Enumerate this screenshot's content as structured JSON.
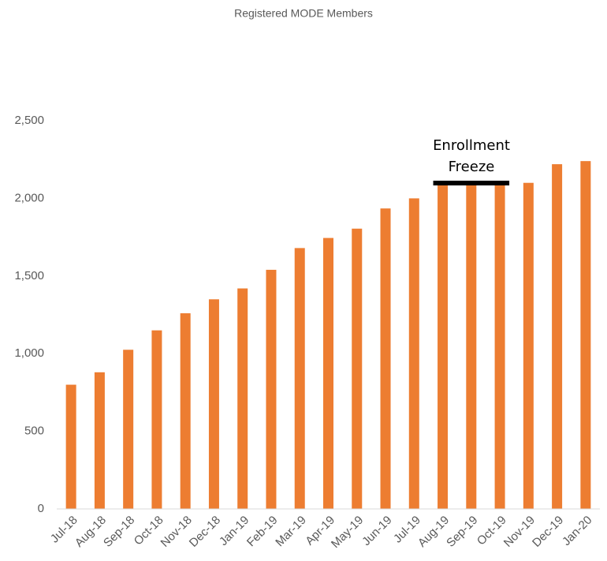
{
  "chart_data": {
    "type": "bar",
    "title": "Registered MODE Members",
    "categories": [
      "Jul-18",
      "Aug-18",
      "Sep-18",
      "Oct-18",
      "Nov-18",
      "Dec-18",
      "Jan-19",
      "Feb-19",
      "Mar-19",
      "Apr-19",
      "May-19",
      "Jun-19",
      "Jul-19",
      "Aug-19",
      "Sep-19",
      "Oct-19",
      "Nov-19",
      "Dec-19",
      "Jan-20"
    ],
    "values": [
      800,
      880,
      1025,
      1150,
      1260,
      1350,
      1420,
      1540,
      1680,
      1745,
      1805,
      1935,
      2000,
      2090,
      2090,
      2090,
      2100,
      2220,
      2240
    ],
    "color": "#ED7D31",
    "ylim": [
      0,
      2500
    ],
    "yticks": [
      0,
      500,
      {
        "value": 1000,
        "label": "1,000"
      },
      {
        "value": 1500,
        "label": "1,500"
      },
      {
        "value": 2000,
        "label": "2,000"
      },
      {
        "value": 2500,
        "label": "2,500"
      }
    ],
    "grid": false,
    "annotation": "Enrollment Freeze"
  }
}
